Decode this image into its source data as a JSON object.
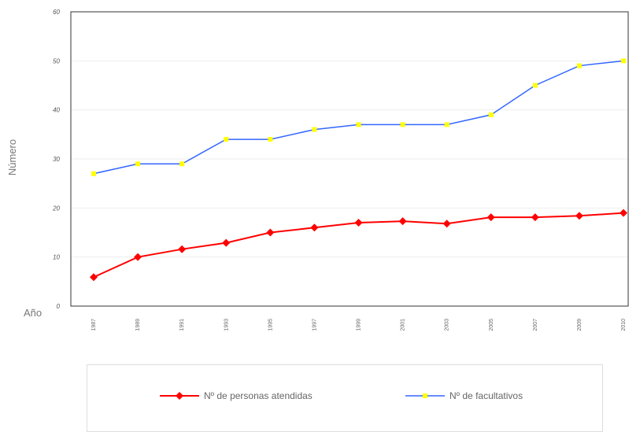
{
  "chart_data": {
    "type": "line",
    "title": "",
    "xlabel": "Año",
    "ylabel": "Número",
    "ylim": [
      0,
      60
    ],
    "yticks": [
      "0",
      "10",
      "20",
      "30",
      "40",
      "50",
      "60"
    ],
    "categories": [
      "1987",
      "1989",
      "1991",
      "1993",
      "1995",
      "1997",
      "1999",
      "2001",
      "2003",
      "2005",
      "2007",
      "2009",
      "2010"
    ],
    "grid": true,
    "legend_position": "bottom",
    "series": [
      {
        "name": "Nº de personas atendidas",
        "color": "#ff0000",
        "marker": "diamond",
        "values": [
          5.9,
          10,
          11.6,
          12.9,
          15,
          16,
          17,
          17.3,
          16.8,
          18.1,
          18.1,
          18.4,
          19
        ]
      },
      {
        "name": "Nº de facultativos",
        "color": "#3366ff",
        "marker": "square",
        "marker_color": "#ffff00",
        "values": [
          27,
          29,
          29,
          34,
          34,
          36,
          37,
          37,
          37,
          39,
          45,
          49,
          50
        ]
      }
    ]
  }
}
